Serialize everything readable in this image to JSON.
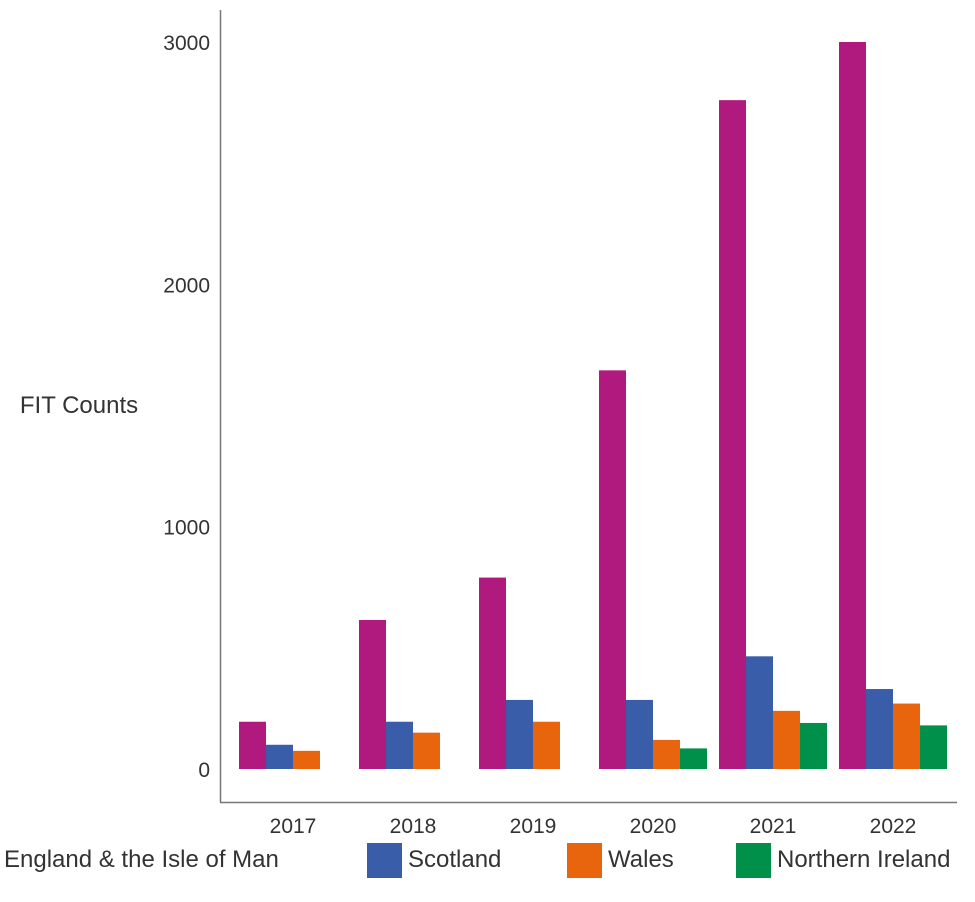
{
  "chart_data": {
    "type": "bar",
    "title": "",
    "xlabel": "",
    "ylabel": "FIT Counts",
    "categories": [
      "2017",
      "2018",
      "2019",
      "2020",
      "2021",
      "2022"
    ],
    "ylim": [
      0,
      3100
    ],
    "yticks": [
      0,
      1000,
      2000,
      3000
    ],
    "grid": false,
    "legend_position": "bottom",
    "series": [
      {
        "name": "England & the Isle of Man",
        "color": "#B01A7F",
        "values": [
          195,
          615,
          790,
          1645,
          2760,
          3000
        ]
      },
      {
        "name": "Scotland",
        "color": "#3A5DAA",
        "values": [
          100,
          195,
          285,
          285,
          465,
          330
        ]
      },
      {
        "name": "Wales",
        "color": "#E8650E",
        "values": [
          75,
          150,
          195,
          120,
          240,
          270
        ]
      },
      {
        "name": "Northern Ireland",
        "color": "#00904A",
        "values": [
          null,
          null,
          null,
          85,
          190,
          180
        ]
      }
    ]
  }
}
